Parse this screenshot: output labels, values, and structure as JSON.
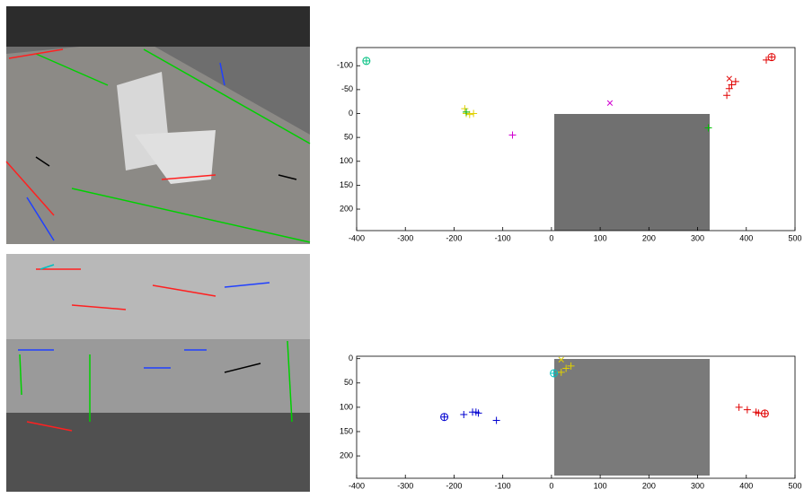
{
  "chart_data": [
    {
      "type": "scatter",
      "xlim": [
        -400,
        500
      ],
      "ylim": [
        -138,
        245
      ],
      "y_reversed": true,
      "xticks": [
        -400,
        -300,
        -200,
        -100,
        0,
        100,
        200,
        300,
        400,
        500
      ],
      "yticks": [
        -100,
        -50,
        0,
        50,
        100,
        150,
        200
      ],
      "series": [
        {
          "color": "#00c080",
          "marker": "circle-plus",
          "x": [
            -380
          ],
          "values": [
            -110
          ]
        },
        {
          "color": "#e00000",
          "marker": "circle-plus",
          "x": [
            452
          ],
          "values": [
            -118
          ]
        },
        {
          "color": "#e00000",
          "marker": "plus",
          "x": [
            441,
            378,
            370,
            365,
            360
          ],
          "values": [
            -112,
            -67,
            -60,
            -52,
            -38
          ]
        },
        {
          "color": "#e00000",
          "marker": "cross",
          "x": [
            365
          ],
          "values": [
            -73
          ]
        },
        {
          "color": "#e0d000",
          "marker": "plus",
          "x": [
            -178,
            -175,
            -168,
            -160
          ],
          "values": [
            -10,
            0,
            2,
            0
          ]
        },
        {
          "color": "#00b000",
          "marker": "plus",
          "x": [
            -175
          ],
          "values": [
            -3
          ]
        },
        {
          "color": "#d000d0",
          "marker": "cross",
          "x": [
            120
          ],
          "values": [
            -22
          ]
        },
        {
          "color": "#d000d0",
          "marker": "plus",
          "x": [
            -80
          ],
          "values": [
            45
          ]
        },
        {
          "color": "#00c000",
          "marker": "plus",
          "x": [
            322
          ],
          "values": [
            30
          ]
        }
      ]
    },
    {
      "type": "scatter",
      "xlim": [
        -400,
        500
      ],
      "ylim": [
        -5,
        246
      ],
      "y_reversed": true,
      "xticks": [
        -400,
        -300,
        -200,
        -100,
        0,
        100,
        200,
        300,
        400,
        500
      ],
      "yticks": [
        0,
        50,
        100,
        150,
        200
      ],
      "series": [
        {
          "color": "#0000d0",
          "marker": "circle-plus",
          "x": [
            -220
          ],
          "values": [
            120
          ]
        },
        {
          "color": "#0000d0",
          "marker": "plus",
          "x": [
            -180,
            -162,
            -155,
            -150,
            -113
          ],
          "values": [
            115,
            110,
            110,
            112,
            127
          ]
        },
        {
          "color": "#e00000",
          "marker": "plus",
          "x": [
            385,
            402,
            420,
            425
          ],
          "values": [
            100,
            105,
            110,
            112
          ]
        },
        {
          "color": "#e00000",
          "marker": "circle-plus",
          "x": [
            438
          ],
          "values": [
            113
          ]
        },
        {
          "color": "#e0d000",
          "marker": "cross",
          "x": [
            20
          ],
          "values": [
            2
          ]
        },
        {
          "color": "#e0d000",
          "marker": "plus",
          "x": [
            30,
            40,
            20
          ],
          "values": [
            20,
            15,
            28
          ]
        },
        {
          "color": "#00c0c0",
          "marker": "circle-plus",
          "x": [
            5
          ],
          "values": [
            30
          ]
        }
      ]
    }
  ]
}
